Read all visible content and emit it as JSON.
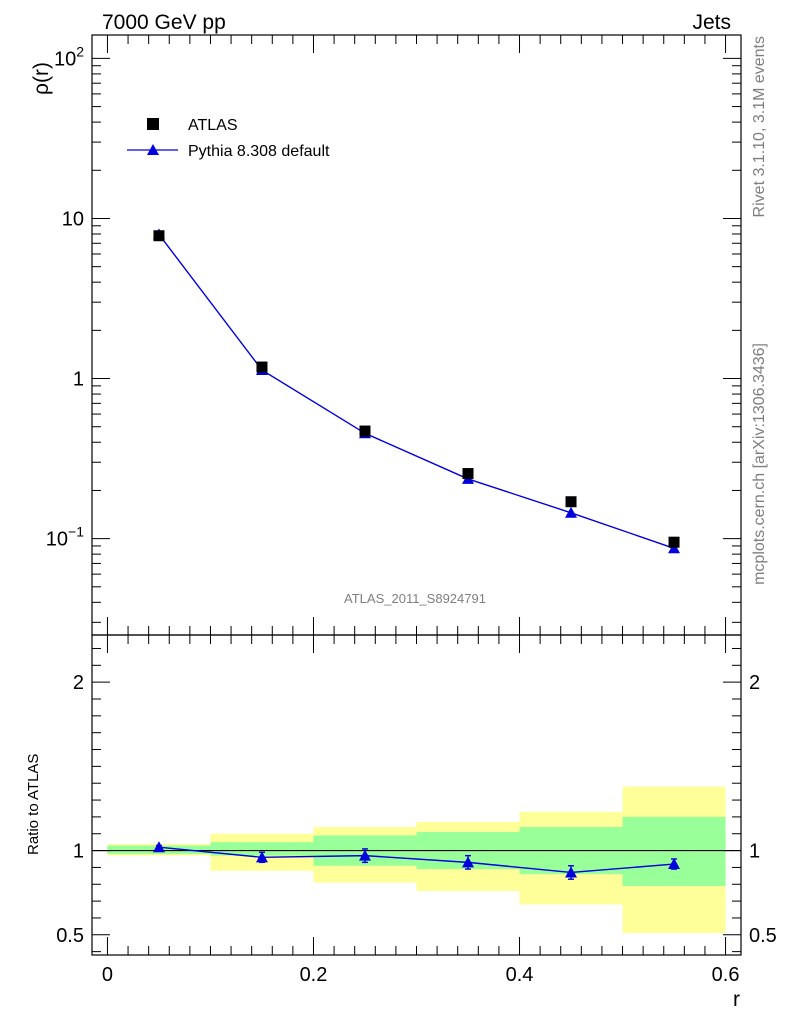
{
  "header": {
    "left": "7000 GeV pp",
    "right": "Jets"
  },
  "side_labels": {
    "top": "Rivet 3.1.10,  3.1M events",
    "bottom": "mcplots.cern.ch [arXiv:1306.3436]"
  },
  "analysis_label": "ATLAS_2011_S8924791",
  "colors": {
    "data": "#000000",
    "mc": "#0000dd",
    "band_inner": "#99ff99",
    "band_outer": "#ffff99",
    "ref_line": "#000000"
  },
  "chart_data": [
    {
      "type": "scatter",
      "panel": "main",
      "ylabel_base": "ρ",
      "ylabel_paren": "(r)",
      "yscale": "log",
      "ylim": [
        0.025,
        140
      ],
      "xlim": [
        -0.015,
        0.615
      ],
      "yticks_major": [
        {
          "value": 0.1,
          "base": "10",
          "exp": "−1"
        },
        {
          "value": 1,
          "base": "1",
          "exp": ""
        },
        {
          "value": 10,
          "base": "10",
          "exp": ""
        },
        {
          "value": 100,
          "base": "10",
          "exp": "2"
        }
      ],
      "legend": {
        "placement": "top-left",
        "entries": [
          {
            "key": "data",
            "label": "ATLAS"
          },
          {
            "key": "mc",
            "label": "Pythia 8.308 default"
          }
        ]
      },
      "series": [
        {
          "name": "ATLAS",
          "marker": "square",
          "x": [
            0.05,
            0.15,
            0.25,
            0.35,
            0.45,
            0.55
          ],
          "y": [
            7.8,
            1.18,
            0.47,
            0.255,
            0.17,
            0.095
          ]
        },
        {
          "name": "Pythia 8.308 default",
          "marker": "triangle",
          "x": [
            0.05,
            0.15,
            0.25,
            0.35,
            0.45,
            0.55
          ],
          "y": [
            7.95,
            1.13,
            0.455,
            0.236,
            0.145,
            0.087
          ]
        }
      ]
    },
    {
      "type": "scatter",
      "panel": "ratio",
      "ylabel": "Ratio to ATLAS",
      "xlabel": "r",
      "ylim": [
        0.38,
        2.28
      ],
      "xlim": [
        -0.015,
        0.615
      ],
      "xticks": [
        {
          "value": 0,
          "label": "0"
        },
        {
          "value": 0.2,
          "label": "0.2"
        },
        {
          "value": 0.4,
          "label": "0.4"
        },
        {
          "value": 0.6,
          "label": "0.6"
        }
      ],
      "yticks": [
        {
          "value": 0.5,
          "label": "0.5"
        },
        {
          "value": 1,
          "label": "1"
        },
        {
          "value": 2,
          "label": "2"
        }
      ],
      "bins": [
        {
          "x0": 0.0,
          "x1": 0.1,
          "inner": [
            0.98,
            1.03
          ],
          "outer": [
            0.97,
            1.04
          ]
        },
        {
          "x0": 0.1,
          "x1": 0.2,
          "inner": [
            0.97,
            1.05
          ],
          "outer": [
            0.88,
            1.1
          ]
        },
        {
          "x0": 0.2,
          "x1": 0.3,
          "inner": [
            0.91,
            1.09
          ],
          "outer": [
            0.81,
            1.14
          ]
        },
        {
          "x0": 0.3,
          "x1": 0.4,
          "inner": [
            0.89,
            1.11
          ],
          "outer": [
            0.76,
            1.17
          ]
        },
        {
          "x0": 0.4,
          "x1": 0.5,
          "inner": [
            0.86,
            1.14
          ],
          "outer": [
            0.68,
            1.23
          ]
        },
        {
          "x0": 0.5,
          "x1": 0.6,
          "inner": [
            0.79,
            1.2
          ],
          "outer": [
            0.51,
            1.38
          ]
        }
      ],
      "series": [
        {
          "name": "Pythia 8.308 default",
          "marker": "triangle",
          "x": [
            0.05,
            0.15,
            0.25,
            0.35,
            0.45,
            0.55
          ],
          "y": [
            1.02,
            0.96,
            0.97,
            0.93,
            0.87,
            0.92
          ],
          "err": [
            0.01,
            0.03,
            0.04,
            0.04,
            0.04,
            0.03
          ]
        }
      ]
    }
  ]
}
